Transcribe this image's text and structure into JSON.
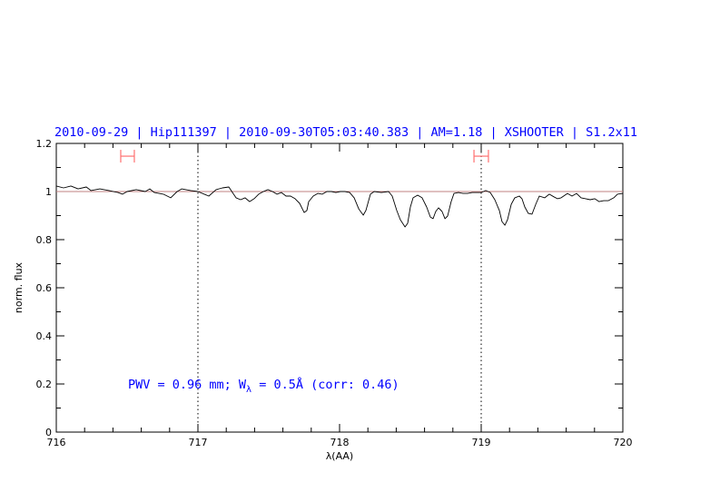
{
  "chart_data": {
    "type": "line",
    "title": "2010-09-29 | Hip111397 | 2010-09-30T05:03:40.383 | AM=1.18 | XSHOOTER | S1.2x11",
    "xlabel": "λ(AA)",
    "ylabel": "norm. flux",
    "xlim": [
      716,
      720
    ],
    "ylim": [
      0,
      1.2
    ],
    "xticks": [
      "716",
      "717",
      "718",
      "719",
      "720"
    ],
    "yticks": [
      "0",
      "0.2",
      "0.4",
      "0.6",
      "0.8",
      "1",
      "1.2"
    ],
    "x_minor_step": 0.2,
    "y_minor_step": 0.1,
    "grid": false,
    "reference_line": 1.0,
    "vertical_markers": [
      717,
      719
    ],
    "ranges": [
      [
        716.455,
        716.551
      ],
      [
        718.949,
        719.051
      ]
    ],
    "range_level": 1.147,
    "annotation": {
      "pre": "PWV  =  0.96  mm;  W",
      "sub": "λ",
      "post": "  =  0.5Å  (corr: 0.46)"
    },
    "colors": {
      "line": "#000000",
      "reference": "#c08080",
      "range": "#ff7070",
      "text": "#0000ff"
    },
    "series": [
      {
        "x": [
          716.0,
          716.051,
          716.103,
          716.154,
          716.212,
          716.244,
          716.308,
          716.372,
          716.436,
          716.468,
          716.5,
          716.564,
          716.628,
          716.66,
          716.692,
          716.756,
          716.808,
          716.853,
          716.885,
          716.949,
          717.0,
          717.045,
          717.077,
          717.128,
          717.173,
          717.218,
          717.244,
          717.269,
          717.301,
          717.333,
          717.365,
          717.397,
          717.429,
          717.462,
          717.494,
          717.526,
          717.558,
          717.59,
          717.622,
          717.654,
          717.686,
          717.718,
          717.75,
          717.769,
          717.782,
          717.814,
          717.846,
          717.878,
          717.91,
          717.942,
          717.974,
          718.006,
          718.038,
          718.071,
          718.103,
          718.135,
          718.167,
          718.186,
          718.218,
          718.244,
          718.295,
          718.346,
          718.372,
          718.404,
          718.429,
          718.462,
          718.481,
          718.5,
          718.519,
          718.551,
          718.583,
          718.615,
          718.641,
          718.66,
          718.679,
          718.699,
          718.724,
          718.744,
          718.763,
          718.788,
          718.808,
          718.84,
          718.872,
          718.904,
          718.936,
          718.968,
          719.0,
          719.032,
          719.064,
          719.096,
          719.128,
          719.147,
          719.167,
          719.186,
          719.212,
          719.237,
          719.269,
          719.288,
          719.308,
          719.333,
          719.359,
          719.385,
          719.41,
          719.449,
          719.481,
          719.513,
          719.538,
          719.564,
          719.609,
          719.641,
          719.673,
          719.705,
          719.737,
          719.769,
          719.801,
          719.833,
          719.865,
          719.897,
          719.936,
          719.962,
          720.0
        ],
        "y": [
          1.023,
          1.015,
          1.023,
          1.011,
          1.019,
          1.004,
          1.011,
          1.004,
          0.996,
          0.989,
          1.0,
          1.008,
          1.0,
          1.011,
          0.996,
          0.989,
          0.974,
          1.0,
          1.011,
          1.004,
          1.0,
          0.989,
          0.981,
          1.008,
          1.015,
          1.019,
          0.996,
          0.974,
          0.966,
          0.974,
          0.958,
          0.97,
          0.989,
          1.0,
          1.008,
          1.0,
          0.989,
          0.996,
          0.981,
          0.981,
          0.97,
          0.951,
          0.913,
          0.921,
          0.958,
          0.981,
          0.992,
          0.989,
          1.0,
          1.0,
          0.996,
          1.0,
          1.0,
          0.996,
          0.974,
          0.928,
          0.902,
          0.921,
          0.989,
          1.0,
          0.996,
          1.0,
          0.981,
          0.921,
          0.883,
          0.853,
          0.868,
          0.936,
          0.974,
          0.985,
          0.974,
          0.936,
          0.894,
          0.887,
          0.917,
          0.932,
          0.917,
          0.887,
          0.898,
          0.958,
          0.992,
          0.996,
          0.992,
          0.992,
          0.996,
          0.996,
          0.996,
          1.004,
          0.996,
          0.966,
          0.921,
          0.875,
          0.86,
          0.883,
          0.947,
          0.974,
          0.981,
          0.97,
          0.936,
          0.909,
          0.906,
          0.947,
          0.981,
          0.974,
          0.989,
          0.978,
          0.97,
          0.974,
          0.992,
          0.981,
          0.992,
          0.974,
          0.97,
          0.966,
          0.97,
          0.958,
          0.962,
          0.962,
          0.974,
          0.989,
          0.992
        ]
      }
    ]
  }
}
